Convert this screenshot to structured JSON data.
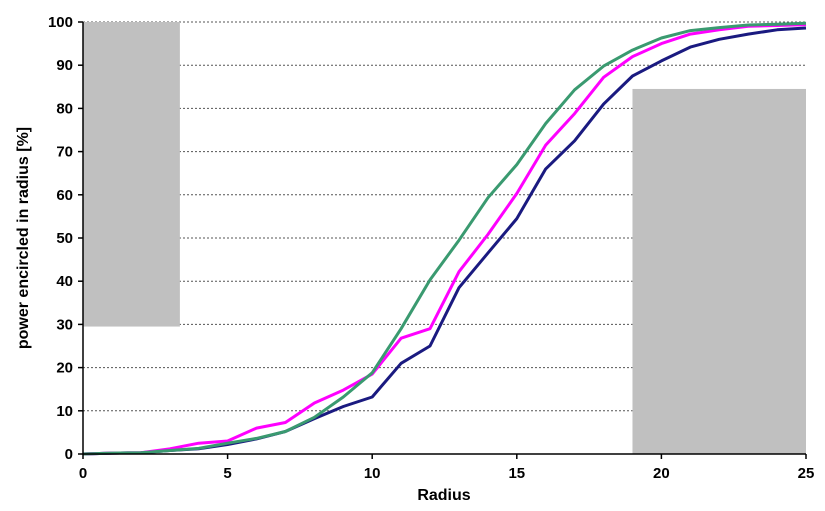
{
  "chart_data": {
    "type": "line",
    "title": "",
    "xlabel": "Radius",
    "ylabel": "power encircled  in radius  [%]",
    "xlim": [
      0,
      25
    ],
    "ylim": [
      0,
      100
    ],
    "xticks": [
      0,
      5,
      10,
      15,
      20,
      25
    ],
    "yticks": [
      0,
      10,
      20,
      30,
      40,
      50,
      60,
      70,
      80,
      90,
      100
    ],
    "grid": "horizontal dashed",
    "legend": "none",
    "x": [
      0,
      1,
      2,
      3,
      4,
      5,
      6,
      7,
      8,
      9,
      10,
      11,
      12,
      13,
      14,
      15,
      16,
      17,
      18,
      19,
      20,
      21,
      22,
      23,
      24,
      25
    ],
    "series": [
      {
        "color": "#1a1a80",
        "values": [
          0,
          0.2,
          0.3,
          0.8,
          1.2,
          2.2,
          3.5,
          5.2,
          8.2,
          11,
          13.2,
          21,
          25,
          38.5,
          46.5,
          54.5,
          66,
          72.5,
          81,
          87.5,
          91,
          94.2,
          96,
          97.2,
          98.2,
          98.6
        ]
      },
      {
        "color": "#ff00ff",
        "values": [
          0,
          0.2,
          0.3,
          1.2,
          2.5,
          3,
          6,
          7.3,
          11.8,
          14.8,
          18.5,
          26.8,
          29,
          42.2,
          50.8,
          60.3,
          71.5,
          78.8,
          87.2,
          92,
          95,
          97.2,
          98.2,
          99,
          99.2,
          99.4
        ]
      },
      {
        "color": "#3a9a70",
        "values": [
          0,
          0.2,
          0.3,
          0.8,
          1.3,
          2.5,
          3.6,
          5.2,
          8.5,
          13.2,
          18.8,
          29,
          40.3,
          49.5,
          59.3,
          67,
          76.5,
          84.3,
          89.8,
          93.5,
          96.3,
          98,
          98.7,
          99.3,
          99.5,
          99.7
        ]
      }
    ],
    "occluders": [
      {
        "x0": 0,
        "x1": 3.35,
        "y0": 29.5,
        "y1": 100,
        "color": "#c0c0c0"
      },
      {
        "x0": 19,
        "x1": 25,
        "y0": 0,
        "y1": 84.5,
        "color": "#c0c0c0"
      }
    ]
  }
}
